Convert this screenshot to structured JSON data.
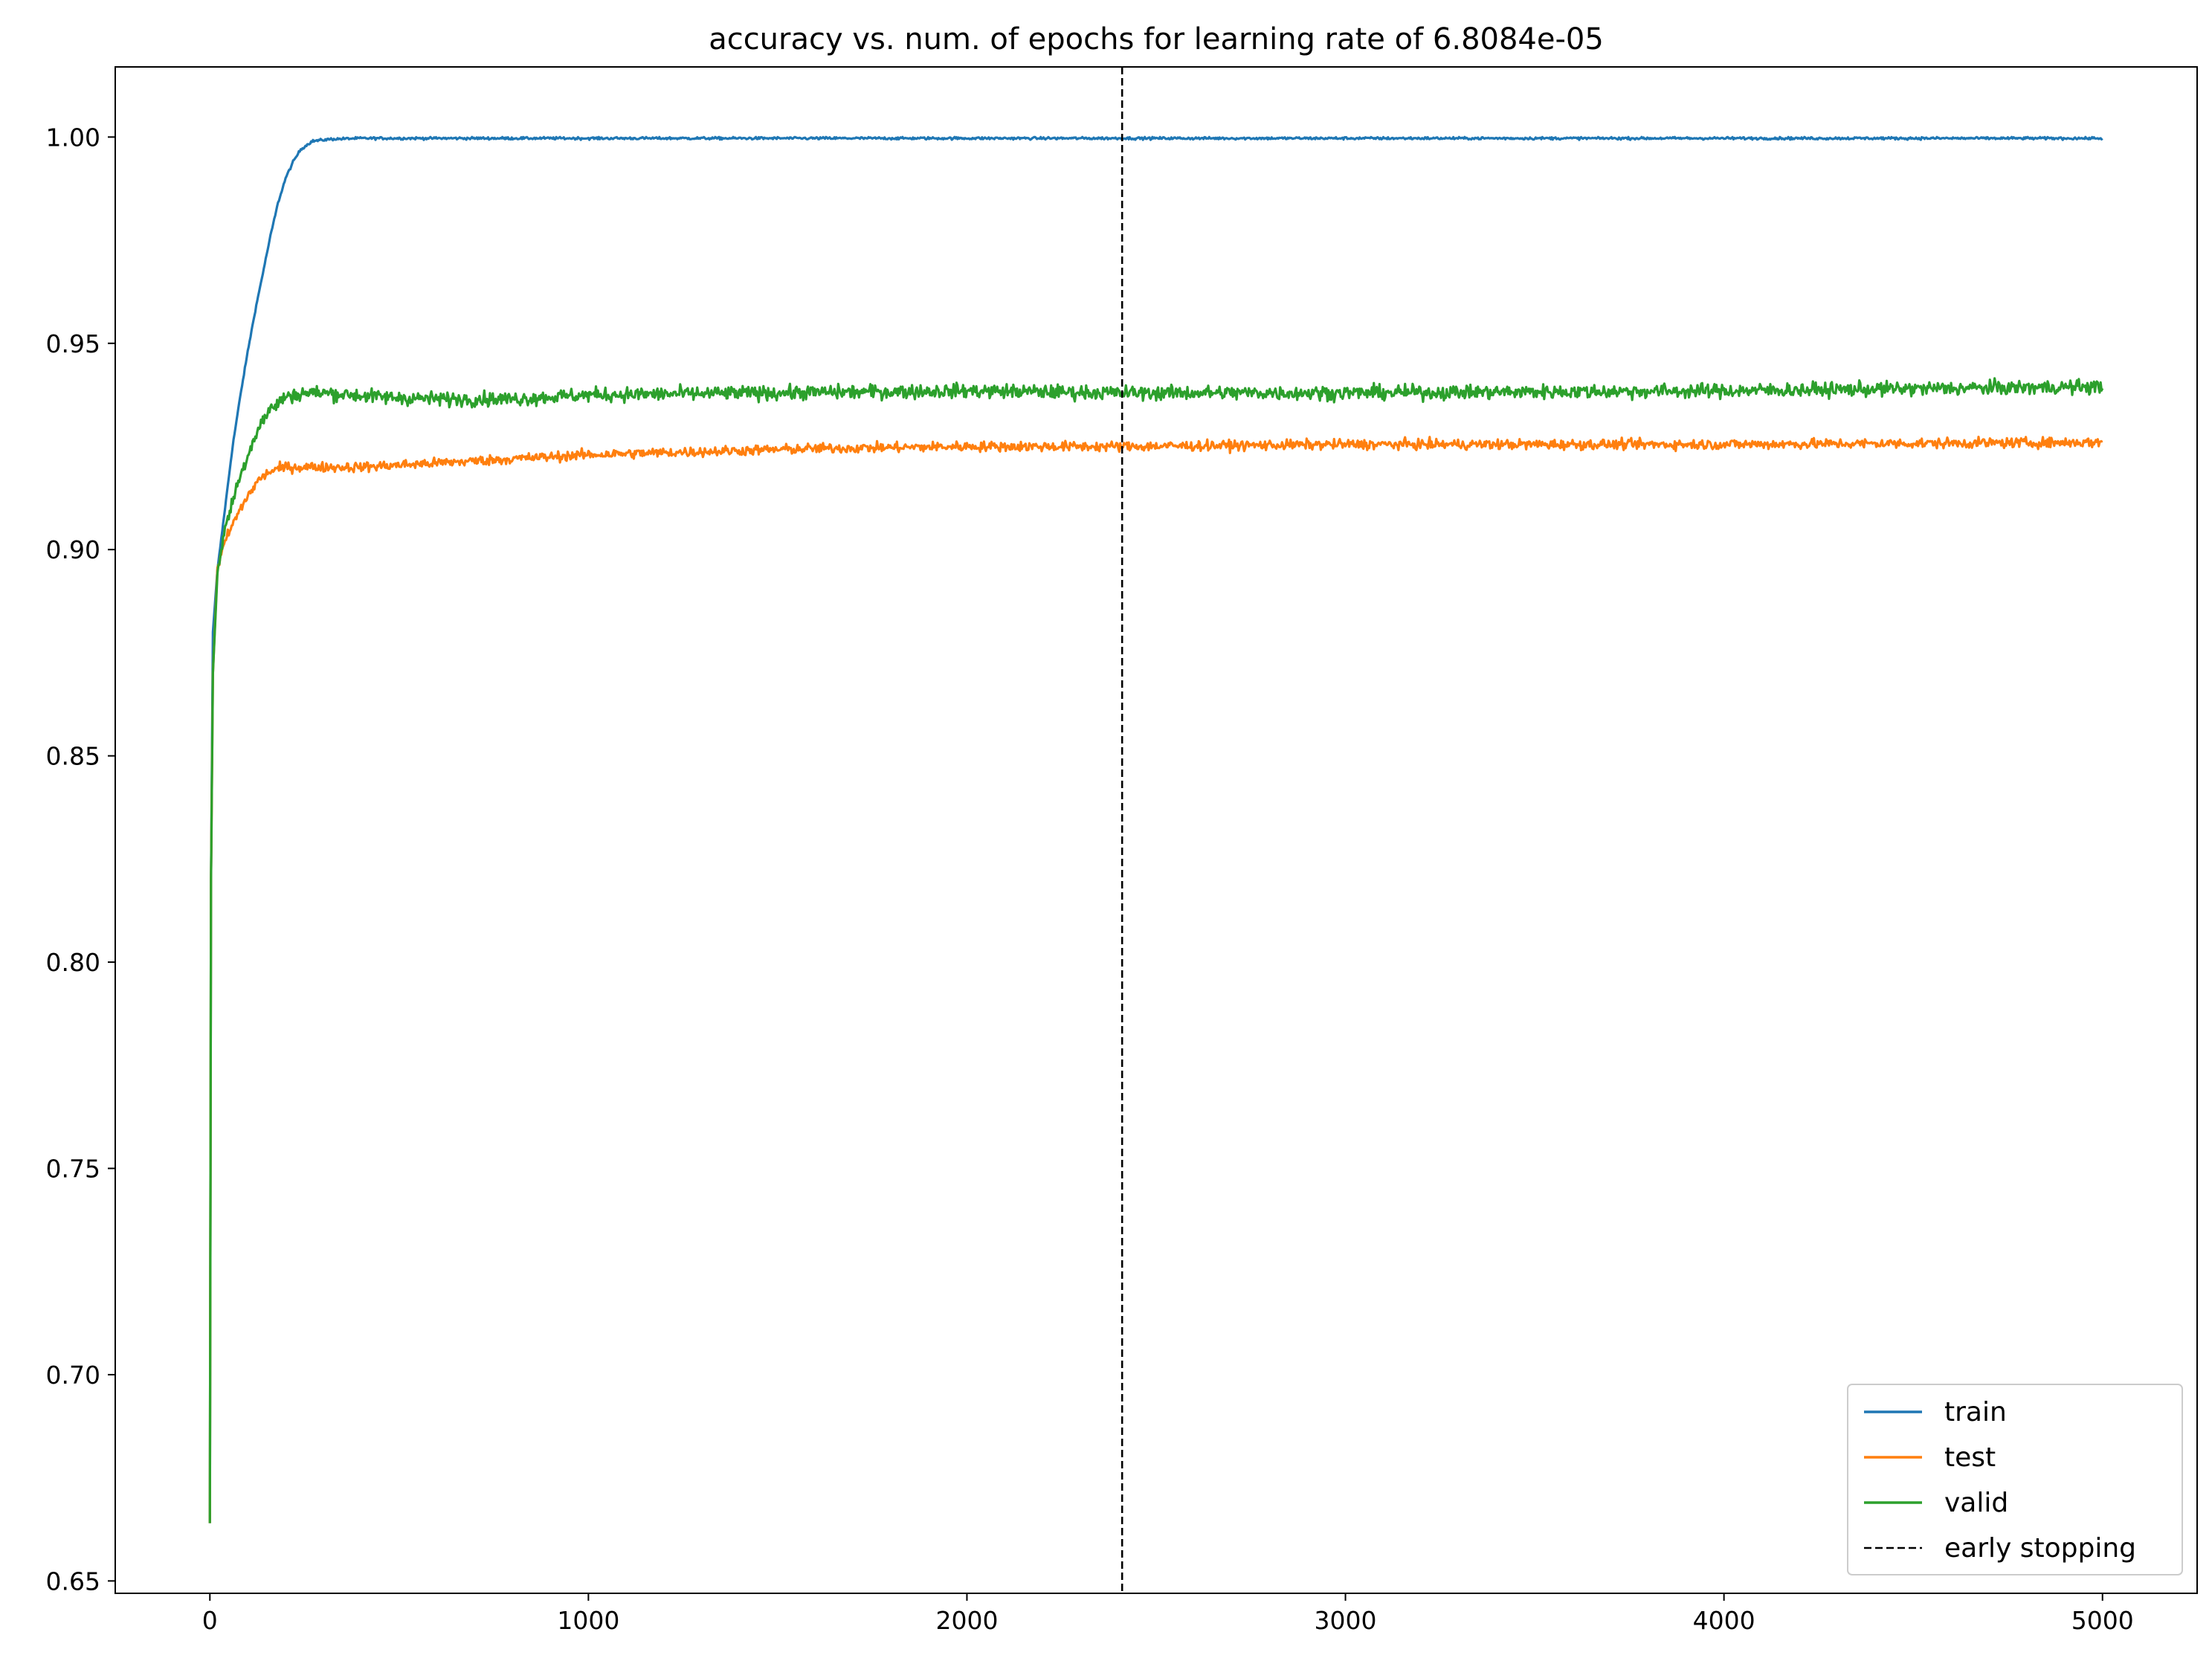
{
  "chart_data": {
    "type": "line",
    "title": "accuracy vs. num. of epochs for learning rate of 6.8084e-05",
    "xlabel": "",
    "ylabel": "",
    "xlim": [
      -250,
      5250
    ],
    "ylim": [
      0.647,
      1.017
    ],
    "x_ticks": [
      0,
      1000,
      2000,
      3000,
      4000,
      5000
    ],
    "x_tick_labels": [
      "0",
      "1000",
      "2000",
      "3000",
      "4000",
      "5000"
    ],
    "y_ticks": [
      0.65,
      0.7,
      0.75,
      0.8,
      0.85,
      0.9,
      0.95,
      1.0
    ],
    "y_tick_labels": [
      "0.65",
      "0.70",
      "0.75",
      "0.80",
      "0.85",
      "0.90",
      "0.95",
      "1.00"
    ],
    "grid": false,
    "legend_position": "lower-right",
    "early_stopping_epoch": 2410,
    "series": [
      {
        "name": "train",
        "color": "#1f77b4",
        "noise": 0.0003,
        "points": [
          [
            0,
            0.664
          ],
          [
            3,
            0.82
          ],
          [
            8,
            0.88
          ],
          [
            20,
            0.895
          ],
          [
            40,
            0.91
          ],
          [
            60,
            0.925
          ],
          [
            80,
            0.937
          ],
          [
            100,
            0.948
          ],
          [
            120,
            0.958
          ],
          [
            140,
            0.967
          ],
          [
            160,
            0.976
          ],
          [
            180,
            0.984
          ],
          [
            200,
            0.99
          ],
          [
            220,
            0.994
          ],
          [
            240,
            0.997
          ],
          [
            270,
            0.999
          ],
          [
            320,
            0.9995
          ],
          [
            400,
            0.9997
          ],
          [
            5000,
            0.9997
          ]
        ]
      },
      {
        "name": "test",
        "color": "#ff7f0e",
        "noise": 0.0012,
        "points": [
          [
            0,
            0.664
          ],
          [
            3,
            0.82
          ],
          [
            8,
            0.87
          ],
          [
            20,
            0.895
          ],
          [
            40,
            0.902
          ],
          [
            70,
            0.908
          ],
          [
            100,
            0.913
          ],
          [
            130,
            0.917
          ],
          [
            160,
            0.919
          ],
          [
            200,
            0.92
          ],
          [
            400,
            0.92
          ],
          [
            600,
            0.921
          ],
          [
            800,
            0.922
          ],
          [
            1000,
            0.923
          ],
          [
            1200,
            0.9235
          ],
          [
            1400,
            0.924
          ],
          [
            1600,
            0.9245
          ],
          [
            2000,
            0.925
          ],
          [
            2410,
            0.925
          ],
          [
            3000,
            0.9255
          ],
          [
            4000,
            0.9255
          ],
          [
            5000,
            0.926
          ]
        ]
      },
      {
        "name": "valid",
        "color": "#2ca02c",
        "noise": 0.0017,
        "points": [
          [
            0,
            0.664
          ],
          [
            3,
            0.82
          ],
          [
            8,
            0.87
          ],
          [
            20,
            0.895
          ],
          [
            40,
            0.905
          ],
          [
            70,
            0.915
          ],
          [
            100,
            0.923
          ],
          [
            130,
            0.93
          ],
          [
            160,
            0.934
          ],
          [
            200,
            0.937
          ],
          [
            250,
            0.938
          ],
          [
            300,
            0.938
          ],
          [
            450,
            0.937
          ],
          [
            600,
            0.9365
          ],
          [
            800,
            0.9365
          ],
          [
            1000,
            0.9375
          ],
          [
            1500,
            0.938
          ],
          [
            2000,
            0.9385
          ],
          [
            2410,
            0.938
          ],
          [
            3000,
            0.938
          ],
          [
            4000,
            0.9385
          ],
          [
            5000,
            0.9395
          ]
        ]
      }
    ],
    "legend": [
      {
        "label": "train",
        "color": "#1f77b4",
        "style": "solid"
      },
      {
        "label": "test",
        "color": "#ff7f0e",
        "style": "solid"
      },
      {
        "label": "valid",
        "color": "#2ca02c",
        "style": "solid"
      },
      {
        "label": "early stopping",
        "color": "#000000",
        "style": "dashed"
      }
    ]
  }
}
